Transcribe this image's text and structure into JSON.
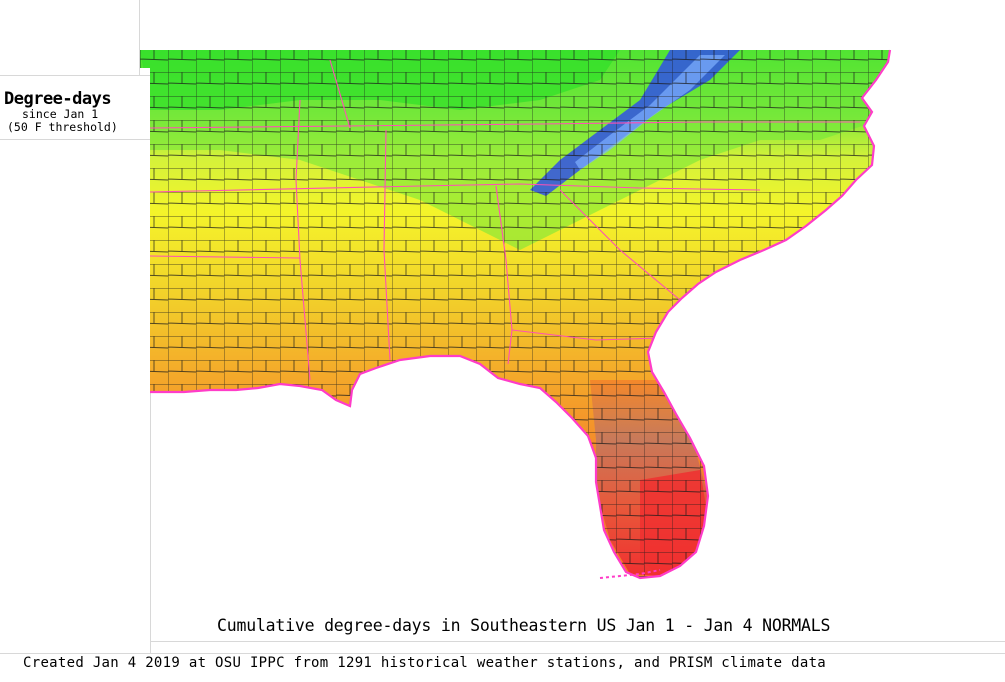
{
  "legend": {
    "title": "Degree-days",
    "line1": "since Jan 1",
    "line2": "(50 F threshold)"
  },
  "map": {
    "caption": "Cumulative degree-days in Southeastern US Jan 1 - Jan 4 NORMALS",
    "region": "Southeastern US",
    "colors": {
      "green": "#2fe02a",
      "yellow_green": "#b8f03a",
      "yellow": "#f4f42a",
      "orange_yellow": "#f2c22a",
      "orange": "#f49a2a",
      "deep_orange": "#f47a2a",
      "brown": "#c87a5a",
      "red": "#f03030",
      "blue": "#3050e8",
      "boundary_county": "#1a1a1a",
      "boundary_state": "#ff50b4",
      "coast": "#ff3cc8"
    }
  },
  "footer": {
    "credit": "Created Jan 4 2019 at OSU IPPC from 1291 historical weather stations, and PRISM climate data"
  }
}
